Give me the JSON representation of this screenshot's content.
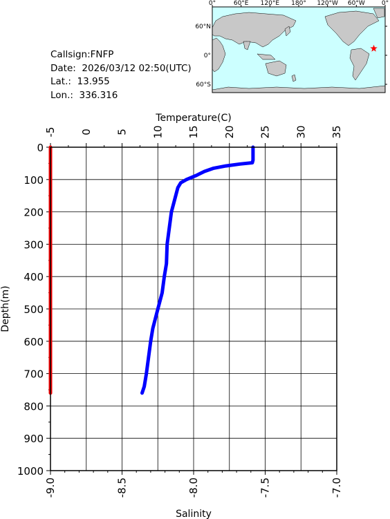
{
  "info": {
    "callsign": "Callsign:FNFP",
    "date": "Date:  2026/03/12 02:50(UTC)",
    "lat": "Lat.:  13.955",
    "lon": "Lon.:  336.316"
  },
  "map": {
    "lon_labels": [
      "0°",
      "60°E",
      "120°E",
      "180°",
      "120°W",
      "60°W",
      "0°"
    ],
    "lat_labels": [
      "60°N",
      "0°",
      "60°S"
    ],
    "station": {
      "lon": 336.316,
      "lat": 13.955
    },
    "colors": {
      "ocean": "#ccffff",
      "land": "#c8c8c8",
      "marker": "#ff0000"
    }
  },
  "chart_data": {
    "type": "line",
    "title": "",
    "top_axis": {
      "label": "Temperature(C)",
      "range": [
        -5,
        35
      ],
      "ticks": [
        -5,
        0,
        5,
        10,
        15,
        20,
        25,
        30,
        35
      ]
    },
    "bottom_axis": {
      "label": "Salinity",
      "range": [
        -9.0,
        -7.0
      ],
      "ticks": [
        "-9.0",
        "-8.5",
        "-8.0",
        "-7.5",
        "-7.0"
      ],
      "tick_values": [
        -9.0,
        -8.5,
        -8.0,
        -7.5,
        -7.0
      ]
    },
    "left_axis": {
      "label": "Depth(m)",
      "range": [
        0,
        1000
      ],
      "ticks": [
        0,
        100,
        200,
        300,
        400,
        500,
        600,
        700,
        800,
        900,
        1000
      ],
      "inverted": true
    },
    "grid": true,
    "series": [
      {
        "axis": "temperature",
        "color": "#0000ff",
        "points": [
          {
            "depth": 0,
            "value": 23.3
          },
          {
            "depth": 20,
            "value": 23.3
          },
          {
            "depth": 40,
            "value": 23.3
          },
          {
            "depth": 48,
            "value": 23.2
          },
          {
            "depth": 52,
            "value": 21.5
          },
          {
            "depth": 58,
            "value": 19.5
          },
          {
            "depth": 65,
            "value": 17.8
          },
          {
            "depth": 75,
            "value": 16.5
          },
          {
            "depth": 88,
            "value": 15.3
          },
          {
            "depth": 100,
            "value": 14.0
          },
          {
            "depth": 110,
            "value": 13.2
          },
          {
            "depth": 125,
            "value": 12.8
          },
          {
            "depth": 150,
            "value": 12.5
          },
          {
            "depth": 200,
            "value": 11.9
          },
          {
            "depth": 250,
            "value": 11.6
          },
          {
            "depth": 300,
            "value": 11.3
          },
          {
            "depth": 360,
            "value": 11.2
          },
          {
            "depth": 400,
            "value": 10.9
          },
          {
            "depth": 450,
            "value": 10.6
          },
          {
            "depth": 500,
            "value": 10.0
          },
          {
            "depth": 560,
            "value": 9.3
          },
          {
            "depth": 600,
            "value": 9.0
          },
          {
            "depth": 650,
            "value": 8.7
          },
          {
            "depth": 700,
            "value": 8.4
          },
          {
            "depth": 740,
            "value": 8.1
          },
          {
            "depth": 760,
            "value": 7.8
          }
        ]
      },
      {
        "axis": "salinity",
        "color": "#ff0000",
        "points": [
          {
            "depth": 0,
            "value": -9.0
          },
          {
            "depth": 760,
            "value": -9.0
          }
        ]
      }
    ]
  }
}
